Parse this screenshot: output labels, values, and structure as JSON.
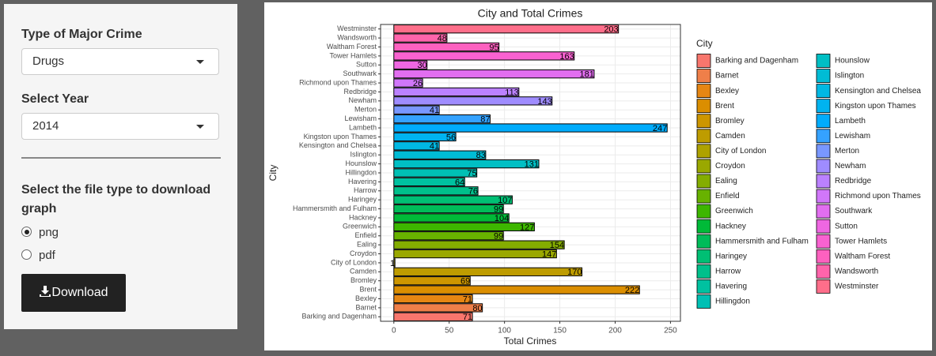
{
  "sidebar": {
    "crime_label": "Type of Major Crime",
    "crime_value": "Drugs",
    "year_label": "Select Year",
    "year_value": "2014",
    "file_label": "Select the file type to download graph",
    "options": [
      "png",
      "pdf"
    ],
    "selected": "png",
    "button": "Download"
  },
  "chart_data": {
    "type": "barh",
    "title": "City and Total Crimes",
    "x_label": "Total Crimes",
    "y_label": "City",
    "legend_title": "City",
    "categories": [
      "Barking and Dagenham",
      "Barnet",
      "Bexley",
      "Brent",
      "Bromley",
      "Camden",
      "City of London",
      "Croydon",
      "Ealing",
      "Enfield",
      "Greenwich",
      "Hackney",
      "Hammersmith and Fulham",
      "Haringey",
      "Harrow",
      "Havering",
      "Hillingdon",
      "Hounslow",
      "Islington",
      "Kensington and Chelsea",
      "Kingston upon Thames",
      "Lambeth",
      "Lewisham",
      "Merton",
      "Newham",
      "Redbridge",
      "Richmond upon Thames",
      "Southwark",
      "Sutton",
      "Tower Hamlets",
      "Waltham Forest",
      "Wandsworth",
      "Westminster"
    ],
    "values": [
      71,
      80,
      71,
      222,
      69,
      170,
      1,
      147,
      154,
      99,
      127,
      104,
      99,
      107,
      76,
      64,
      75,
      131,
      83,
      41,
      56,
      247,
      87,
      41,
      143,
      113,
      26,
      181,
      30,
      163,
      95,
      48,
      203
    ],
    "colors": [
      "#F8766D",
      "#EF7F49",
      "#E68613",
      "#DB8E00",
      "#CD9600",
      "#BE9C00",
      "#AEA200",
      "#9AA800",
      "#84AD00",
      "#68B200",
      "#3DB600",
      "#00BA38",
      "#00BC59",
      "#00BF74",
      "#00C08B",
      "#00C1A0",
      "#00C0B4",
      "#00BFC4",
      "#00BCD5",
      "#00B8E3",
      "#00B3F0",
      "#00ACFC",
      "#35A2FF",
      "#7997FF",
      "#9F8CFF",
      "#BB81FF",
      "#D177FA",
      "#E26EF0",
      "#EF67E2",
      "#F962D1",
      "#FD61BF",
      "#FF64AB",
      "#FE6E8A"
    ],
    "xlim": [
      -12,
      259
    ],
    "xticks": [
      0,
      50,
      100,
      150,
      200,
      250
    ],
    "grid": true
  }
}
